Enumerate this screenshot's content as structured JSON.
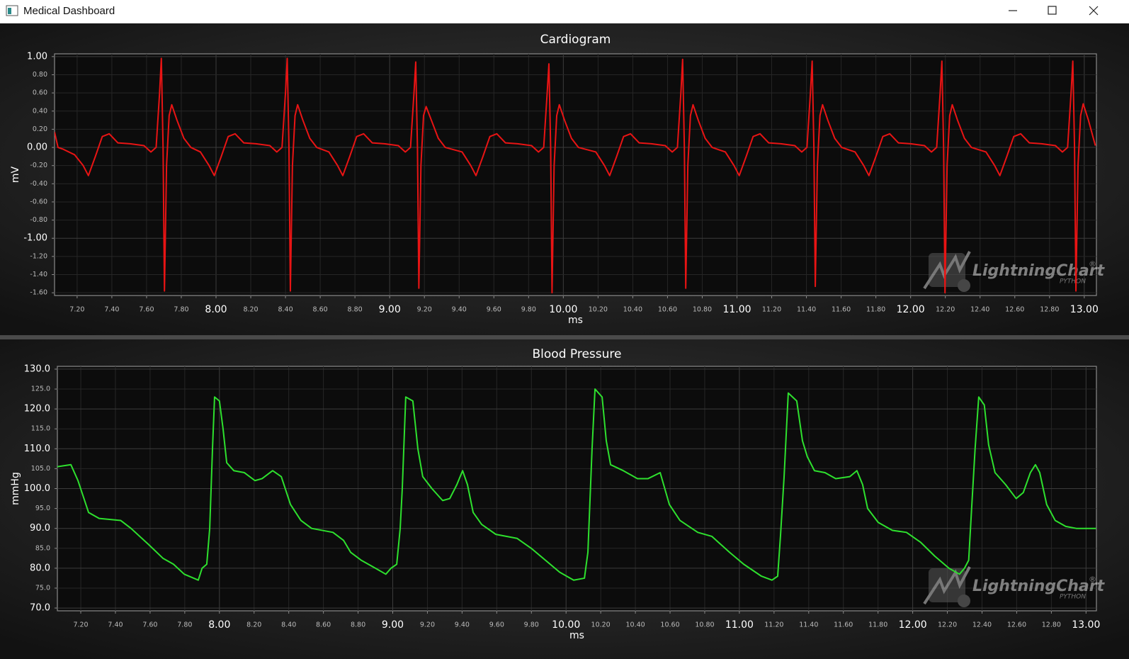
{
  "window": {
    "title": "Medical Dashboard"
  },
  "watermark": {
    "text": "LightningChart",
    "mark": "®",
    "sub": "PYTHON"
  },
  "chart_data": [
    {
      "type": "line",
      "title": "Cardiogram",
      "x_label": "ms",
      "y_label": "mV",
      "color": "#e81414",
      "grid": true,
      "xlim": [
        7.07,
        13.07
      ],
      "ylim": [
        -1.63,
        1.03
      ],
      "xticks": [
        {
          "value": 7.2,
          "label": "7.20"
        },
        {
          "value": 7.4,
          "label": "7.40"
        },
        {
          "value": 7.6,
          "label": "7.60"
        },
        {
          "value": 7.8,
          "label": "7.80"
        },
        {
          "value": 8,
          "label": "8.00"
        },
        {
          "value": 8.2,
          "label": "8.20"
        },
        {
          "value": 8.4,
          "label": "8.40"
        },
        {
          "value": 8.6,
          "label": "8.60"
        },
        {
          "value": 8.8,
          "label": "8.80"
        },
        {
          "value": 9,
          "label": "9.00"
        },
        {
          "value": 9.2,
          "label": "9.20"
        },
        {
          "value": 9.4,
          "label": "9.40"
        },
        {
          "value": 9.6,
          "label": "9.60"
        },
        {
          "value": 9.8,
          "label": "9.80"
        },
        {
          "value": 10,
          "label": "10.00"
        },
        {
          "value": 10.2,
          "label": "10.20"
        },
        {
          "value": 10.4,
          "label": "10.40"
        },
        {
          "value": 10.6,
          "label": "10.60"
        },
        {
          "value": 10.8,
          "label": "10.80"
        },
        {
          "value": 11,
          "label": "11.00"
        },
        {
          "value": 11.2,
          "label": "11.20"
        },
        {
          "value": 11.4,
          "label": "11.40"
        },
        {
          "value": 11.6,
          "label": "11.60"
        },
        {
          "value": 11.8,
          "label": "11.80"
        },
        {
          "value": 12,
          "label": "12.00"
        },
        {
          "value": 12.2,
          "label": "12.20"
        },
        {
          "value": 12.4,
          "label": "12.40"
        },
        {
          "value": 12.6,
          "label": "12.60"
        },
        {
          "value": 12.8,
          "label": "12.80"
        },
        {
          "value": 13,
          "label": "13.00"
        }
      ],
      "yticks": [
        {
          "value": 1,
          "label": "1.00"
        },
        {
          "value": 0.8,
          "label": "0.80"
        },
        {
          "value": 0.6,
          "label": "0.60"
        },
        {
          "value": 0.4,
          "label": "0.40"
        },
        {
          "value": 0.2,
          "label": "0.20"
        },
        {
          "value": 0,
          "label": "0.00"
        },
        {
          "value": -0.2,
          "label": "-0.20"
        },
        {
          "value": -0.4,
          "label": "-0.40"
        },
        {
          "value": -0.6,
          "label": "-0.60"
        },
        {
          "value": -0.8,
          "label": "-0.80"
        },
        {
          "value": -1,
          "label": "-1.00"
        },
        {
          "value": -1.2,
          "label": "-1.20"
        },
        {
          "value": -1.4,
          "label": "-1.40"
        },
        {
          "value": -1.6,
          "label": "-1.60"
        }
      ],
      "x": [
        7.07,
        7.09,
        7.12,
        7.185,
        7.235,
        7.265,
        7.305,
        7.345,
        7.385,
        7.435,
        7.505,
        7.585,
        7.625,
        7.655,
        7.675,
        7.685,
        7.695,
        7.703,
        7.715,
        7.73,
        7.745,
        7.775,
        7.815,
        7.855,
        7.91,
        7.96,
        7.99,
        8.03,
        8.07,
        8.11,
        8.16,
        8.23,
        8.31,
        8.35,
        8.38,
        8.4,
        8.41,
        8.42,
        8.428,
        8.44,
        8.455,
        8.47,
        8.5,
        8.54,
        8.58,
        8.65,
        8.7,
        8.73,
        8.77,
        8.81,
        8.85,
        8.9,
        8.97,
        9.05,
        9.09,
        9.12,
        9.14,
        9.15,
        9.16,
        9.168,
        9.18,
        9.195,
        9.21,
        9.24,
        9.28,
        9.32,
        9.417,
        9.467,
        9.497,
        9.537,
        9.577,
        9.617,
        9.667,
        9.737,
        9.817,
        9.857,
        9.887,
        9.907,
        9.917,
        9.927,
        9.935,
        9.947,
        9.962,
        9.977,
        10.007,
        10.047,
        10.087,
        10.187,
        10.237,
        10.267,
        10.307,
        10.347,
        10.387,
        10.437,
        10.507,
        10.587,
        10.627,
        10.657,
        10.677,
        10.687,
        10.697,
        10.705,
        10.717,
        10.732,
        10.747,
        10.777,
        10.817,
        10.857,
        10.933,
        10.983,
        11.013,
        11.053,
        11.093,
        11.133,
        11.183,
        11.253,
        11.333,
        11.373,
        11.403,
        11.423,
        11.433,
        11.443,
        11.451,
        11.463,
        11.478,
        11.493,
        11.523,
        11.563,
        11.603,
        11.68,
        11.73,
        11.76,
        11.8,
        11.84,
        11.88,
        11.93,
        12,
        12.08,
        12.12,
        12.15,
        12.17,
        12.18,
        12.19,
        12.198,
        12.21,
        12.225,
        12.24,
        12.27,
        12.31,
        12.35,
        12.434,
        12.484,
        12.514,
        12.554,
        12.594,
        12.634,
        12.684,
        12.754,
        12.834,
        12.874,
        12.904,
        12.924,
        12.934,
        12.944,
        12.952,
        12.964,
        12.979,
        12.994,
        13.024,
        13.064
      ],
      "values": [
        0.17,
        0.0,
        -0.02,
        -0.08,
        -0.2,
        -0.31,
        -0.1,
        0.12,
        0.15,
        0.05,
        0.04,
        0.02,
        -0.05,
        0.0,
        0.6,
        0.98,
        0.0,
        -1.58,
        -0.2,
        0.35,
        0.47,
        0.3,
        0.1,
        0.0,
        -0.05,
        -0.2,
        -0.31,
        -0.1,
        0.12,
        0.15,
        0.05,
        0.04,
        0.02,
        -0.05,
        0.0,
        0.6,
        0.98,
        0.0,
        -1.58,
        -0.2,
        0.35,
        0.47,
        0.3,
        0.1,
        0.0,
        -0.05,
        -0.2,
        -0.31,
        -0.1,
        0.12,
        0.15,
        0.05,
        0.04,
        0.02,
        -0.05,
        0.0,
        0.6,
        0.94,
        0.0,
        -1.55,
        -0.2,
        0.35,
        0.45,
        0.3,
        0.1,
        0.0,
        -0.05,
        -0.2,
        -0.31,
        -0.1,
        0.12,
        0.15,
        0.05,
        0.04,
        0.02,
        -0.05,
        0.0,
        0.6,
        0.92,
        0.0,
        -1.6,
        -0.2,
        0.35,
        0.47,
        0.3,
        0.1,
        0.0,
        -0.05,
        -0.2,
        -0.31,
        -0.1,
        0.12,
        0.15,
        0.05,
        0.04,
        0.02,
        -0.05,
        0.0,
        0.6,
        0.97,
        0.0,
        -1.55,
        -0.2,
        0.35,
        0.47,
        0.3,
        0.1,
        0.0,
        -0.05,
        -0.2,
        -0.31,
        -0.1,
        0.12,
        0.15,
        0.05,
        0.04,
        0.02,
        -0.05,
        0.0,
        0.6,
        0.95,
        0.0,
        -1.53,
        -0.2,
        0.35,
        0.47,
        0.3,
        0.1,
        0.0,
        -0.05,
        -0.2,
        -0.31,
        -0.1,
        0.12,
        0.15,
        0.05,
        0.04,
        0.02,
        -0.05,
        0.0,
        0.6,
        0.95,
        0.0,
        -1.6,
        -0.2,
        0.35,
        0.47,
        0.3,
        0.1,
        0.0,
        -0.05,
        -0.2,
        -0.31,
        -0.1,
        0.12,
        0.15,
        0.05,
        0.04,
        0.02,
        -0.05,
        0.0,
        0.6,
        0.95,
        0.0,
        -1.58,
        -0.2,
        0.35,
        0.48,
        0.3,
        0.02
      ]
    },
    {
      "type": "line",
      "title": "Blood Pressure",
      "x_label": "ms",
      "y_label": "mmHg",
      "color": "#2ee02e",
      "grid": true,
      "xlim": [
        7.065,
        13.06
      ],
      "ylim": [
        69.3,
        130.7
      ],
      "xticks": [
        {
          "value": 7.2,
          "label": "7.20"
        },
        {
          "value": 7.4,
          "label": "7.40"
        },
        {
          "value": 7.6,
          "label": "7.60"
        },
        {
          "value": 7.8,
          "label": "7.80"
        },
        {
          "value": 8,
          "label": "8.00"
        },
        {
          "value": 8.2,
          "label": "8.20"
        },
        {
          "value": 8.4,
          "label": "8.40"
        },
        {
          "value": 8.6,
          "label": "8.60"
        },
        {
          "value": 8.8,
          "label": "8.80"
        },
        {
          "value": 9,
          "label": "9.00"
        },
        {
          "value": 9.2,
          "label": "9.20"
        },
        {
          "value": 9.4,
          "label": "9.40"
        },
        {
          "value": 9.6,
          "label": "9.60"
        },
        {
          "value": 9.8,
          "label": "9.80"
        },
        {
          "value": 10,
          "label": "10.00"
        },
        {
          "value": 10.2,
          "label": "10.20"
        },
        {
          "value": 10.4,
          "label": "10.40"
        },
        {
          "value": 10.6,
          "label": "10.60"
        },
        {
          "value": 10.8,
          "label": "10.80"
        },
        {
          "value": 11,
          "label": "11.00"
        },
        {
          "value": 11.2,
          "label": "11.20"
        },
        {
          "value": 11.4,
          "label": "11.40"
        },
        {
          "value": 11.6,
          "label": "11.60"
        },
        {
          "value": 11.8,
          "label": "11.80"
        },
        {
          "value": 12,
          "label": "12.00"
        },
        {
          "value": 12.2,
          "label": "12.20"
        },
        {
          "value": 12.4,
          "label": "12.40"
        },
        {
          "value": 12.6,
          "label": "12.60"
        },
        {
          "value": 12.8,
          "label": "12.80"
        },
        {
          "value": 13,
          "label": "13.00"
        }
      ],
      "yticks": [
        {
          "value": 130,
          "label": "130.0"
        },
        {
          "value": 125,
          "label": "125.0"
        },
        {
          "value": 120,
          "label": "120.0"
        },
        {
          "value": 115,
          "label": "115.0"
        },
        {
          "value": 110,
          "label": "110.0"
        },
        {
          "value": 105,
          "label": "105.0"
        },
        {
          "value": 100,
          "label": "100.0"
        },
        {
          "value": 95,
          "label": "95.0"
        },
        {
          "value": 90,
          "label": "90.0"
        },
        {
          "value": 85,
          "label": "85.0"
        },
        {
          "value": 80,
          "label": "80.0"
        },
        {
          "value": 75,
          "label": "75.0"
        },
        {
          "value": 70,
          "label": "70.0"
        }
      ],
      "x": [
        7.065,
        7.143,
        7.184,
        7.245,
        7.306,
        7.43,
        7.49,
        7.59,
        7.674,
        7.735,
        7.797,
        7.878,
        7.9,
        7.927,
        7.944,
        7.96,
        7.972,
        8.0,
        8.021,
        8.042,
        8.083,
        8.144,
        8.205,
        8.246,
        8.307,
        8.357,
        8.41,
        8.47,
        8.532,
        8.655,
        8.716,
        8.757,
        8.818,
        8.9,
        8.96,
        8.99,
        9.023,
        9.043,
        9.055,
        9.075,
        9.116,
        9.145,
        9.173,
        9.226,
        9.288,
        9.329,
        9.37,
        9.403,
        9.431,
        9.464,
        9.513,
        9.595,
        9.717,
        9.799,
        9.881,
        9.963,
        10.044,
        10.106,
        10.126,
        10.15,
        10.167,
        10.208,
        10.232,
        10.257,
        10.33,
        10.412,
        10.473,
        10.543,
        10.596,
        10.657,
        10.76,
        10.841,
        10.943,
        11.025,
        11.127,
        11.188,
        11.221,
        11.237,
        11.258,
        11.282,
        11.331,
        11.364,
        11.392,
        11.433,
        11.494,
        11.556,
        11.637,
        11.678,
        11.711,
        11.74,
        11.801,
        11.883,
        11.964,
        12.046,
        12.128,
        12.209,
        12.27,
        12.299,
        12.323,
        12.34,
        12.36,
        12.381,
        12.413,
        12.438,
        12.475,
        12.536,
        12.597,
        12.638,
        12.679,
        12.708,
        12.733,
        12.773,
        12.822,
        12.883,
        12.944,
        13.058
      ],
      "values": [
        105.5,
        106,
        102,
        94,
        92.5,
        92,
        90,
        86,
        82.5,
        81,
        78.5,
        77,
        80,
        81,
        90,
        110,
        123,
        122,
        115,
        106.5,
        104.5,
        104,
        102,
        102.5,
        104.5,
        103,
        96,
        92,
        90,
        89,
        87,
        84,
        82,
        80,
        78.5,
        80,
        81,
        90,
        100,
        123,
        122,
        110,
        103,
        100,
        97,
        97.5,
        101,
        104.5,
        101,
        94,
        91,
        88.5,
        87.5,
        85,
        82,
        79,
        77,
        77.5,
        84,
        110,
        125,
        123,
        112,
        106,
        104.5,
        102.5,
        102.5,
        104,
        96,
        92,
        89,
        88,
        84,
        81,
        78,
        77,
        78,
        88,
        103,
        124,
        122,
        112,
        108,
        104.5,
        104,
        102.5,
        103,
        104.5,
        101,
        95,
        91.5,
        89.5,
        89,
        86.5,
        83,
        80,
        78.5,
        80,
        82,
        95,
        110,
        123,
        121,
        111,
        104,
        101,
        97.5,
        99,
        104,
        106,
        104,
        96,
        92,
        90.5,
        90,
        90
      ]
    }
  ]
}
